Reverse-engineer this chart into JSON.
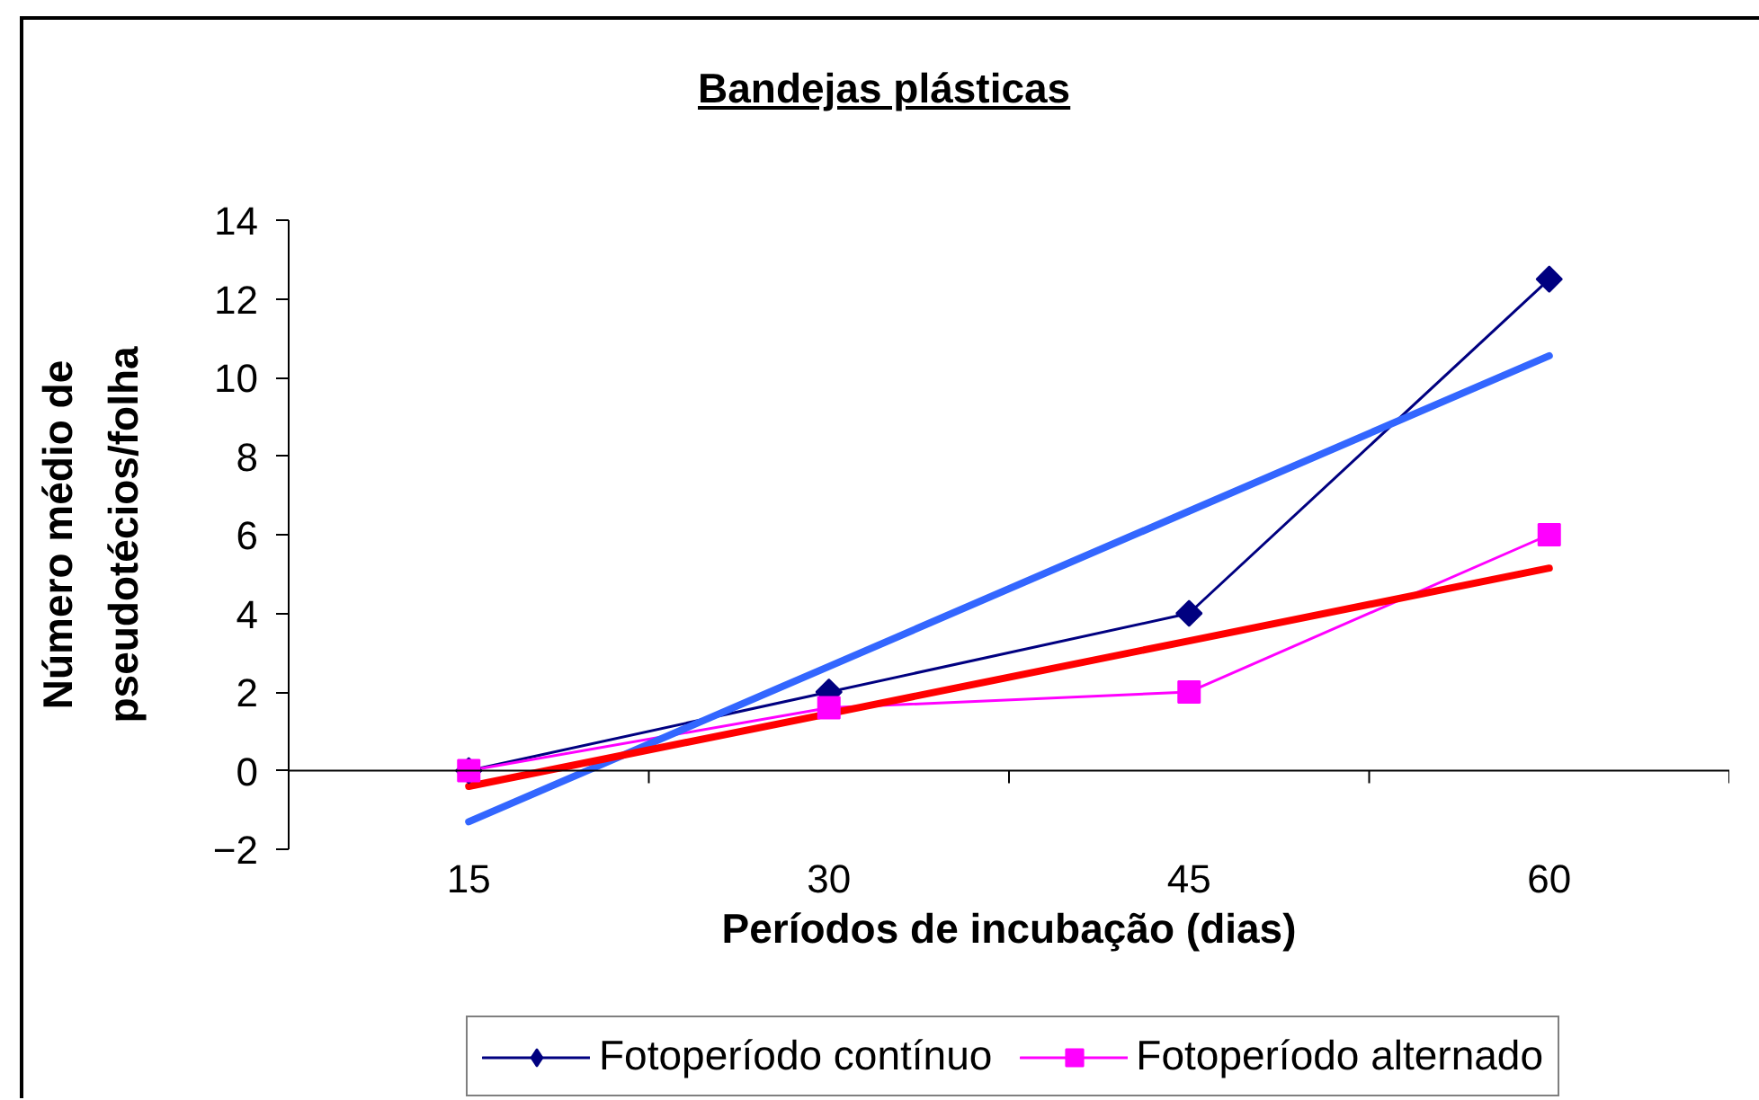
{
  "chart_data": {
    "type": "line",
    "title": "Bandejas plásticas",
    "xlabel": "Períodos de incubação (dias)",
    "ylabel": "Número médio de pseudotécios/folha",
    "categories": [
      "15",
      "30",
      "45",
      "60"
    ],
    "ylim": [
      -2,
      14
    ],
    "yticks": [
      -2,
      0,
      2,
      4,
      6,
      8,
      10,
      12,
      14
    ],
    "legend": "bottom",
    "line_style": "solid",
    "series": [
      {
        "name": "Fotoperíodo contínuo",
        "color": "#000080",
        "marker": "diamond",
        "values": [
          0,
          2,
          4,
          12.5
        ]
      },
      {
        "name": "Fotoperíodo alternado",
        "color": "#ff00ff",
        "marker": "square",
        "values": [
          0,
          1.6,
          2,
          6
        ]
      },
      {
        "color": "#3366ff",
        "marker": "none",
        "values": [
          -1.3,
          2.65,
          6.6,
          10.55
        ]
      },
      {
        "color": "#ff0000",
        "marker": "none",
        "values": [
          -0.4,
          1.45,
          3.3,
          5.15
        ]
      }
    ]
  }
}
